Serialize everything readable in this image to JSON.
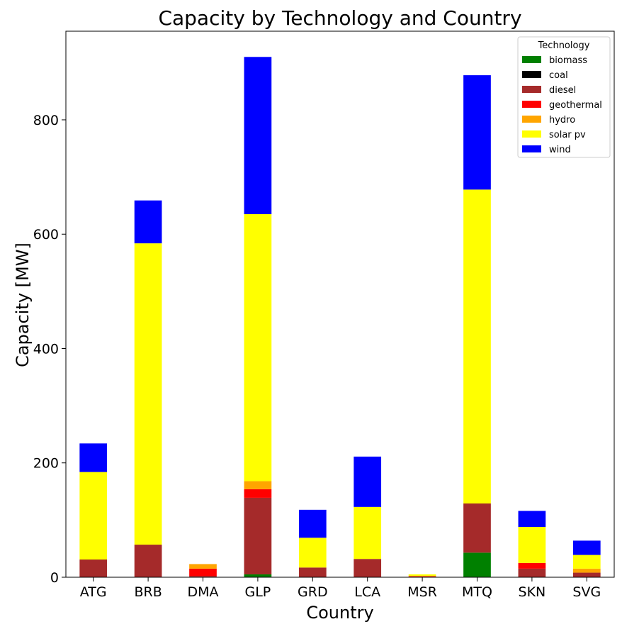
{
  "chart_data": {
    "type": "bar",
    "stacked": true,
    "title": "Capacity by Technology and Country",
    "xlabel": "Country",
    "ylabel": "Capacity [MW]",
    "ylim": [
      0,
      955
    ],
    "yticks": [
      0,
      200,
      400,
      600,
      800
    ],
    "grid": false,
    "legend_title": "Technology",
    "legend_position": "top-right",
    "categories": [
      "ATG",
      "BRB",
      "DMA",
      "GLP",
      "GRD",
      "LCA",
      "MSR",
      "MTQ",
      "SKN",
      "SVG"
    ],
    "series": [
      {
        "name": "biomass",
        "color": "#008000",
        "values": [
          0,
          0,
          0,
          5,
          0,
          0,
          0,
          43,
          0,
          0
        ]
      },
      {
        "name": "coal",
        "color": "#000000",
        "values": [
          0,
          0,
          0,
          0,
          0,
          0,
          0,
          0,
          0,
          0
        ]
      },
      {
        "name": "diesel",
        "color": "#a52a2a",
        "values": [
          31,
          57,
          2,
          134,
          17,
          32,
          1,
          86,
          15,
          8
        ]
      },
      {
        "name": "geothermal",
        "color": "#ff0000",
        "values": [
          0,
          0,
          13,
          15,
          0,
          0,
          1,
          0,
          10,
          0
        ]
      },
      {
        "name": "hydro",
        "color": "#ffa500",
        "values": [
          0,
          0,
          8,
          14,
          0,
          0,
          0,
          0,
          0,
          7
        ]
      },
      {
        "name": "solar pv",
        "color": "#ffff00",
        "values": [
          153,
          527,
          0,
          467,
          52,
          91,
          3,
          549,
          63,
          24
        ]
      },
      {
        "name": "wind",
        "color": "#0000ff",
        "values": [
          50,
          75,
          0,
          275,
          49,
          88,
          0,
          200,
          28,
          25
        ]
      }
    ]
  }
}
